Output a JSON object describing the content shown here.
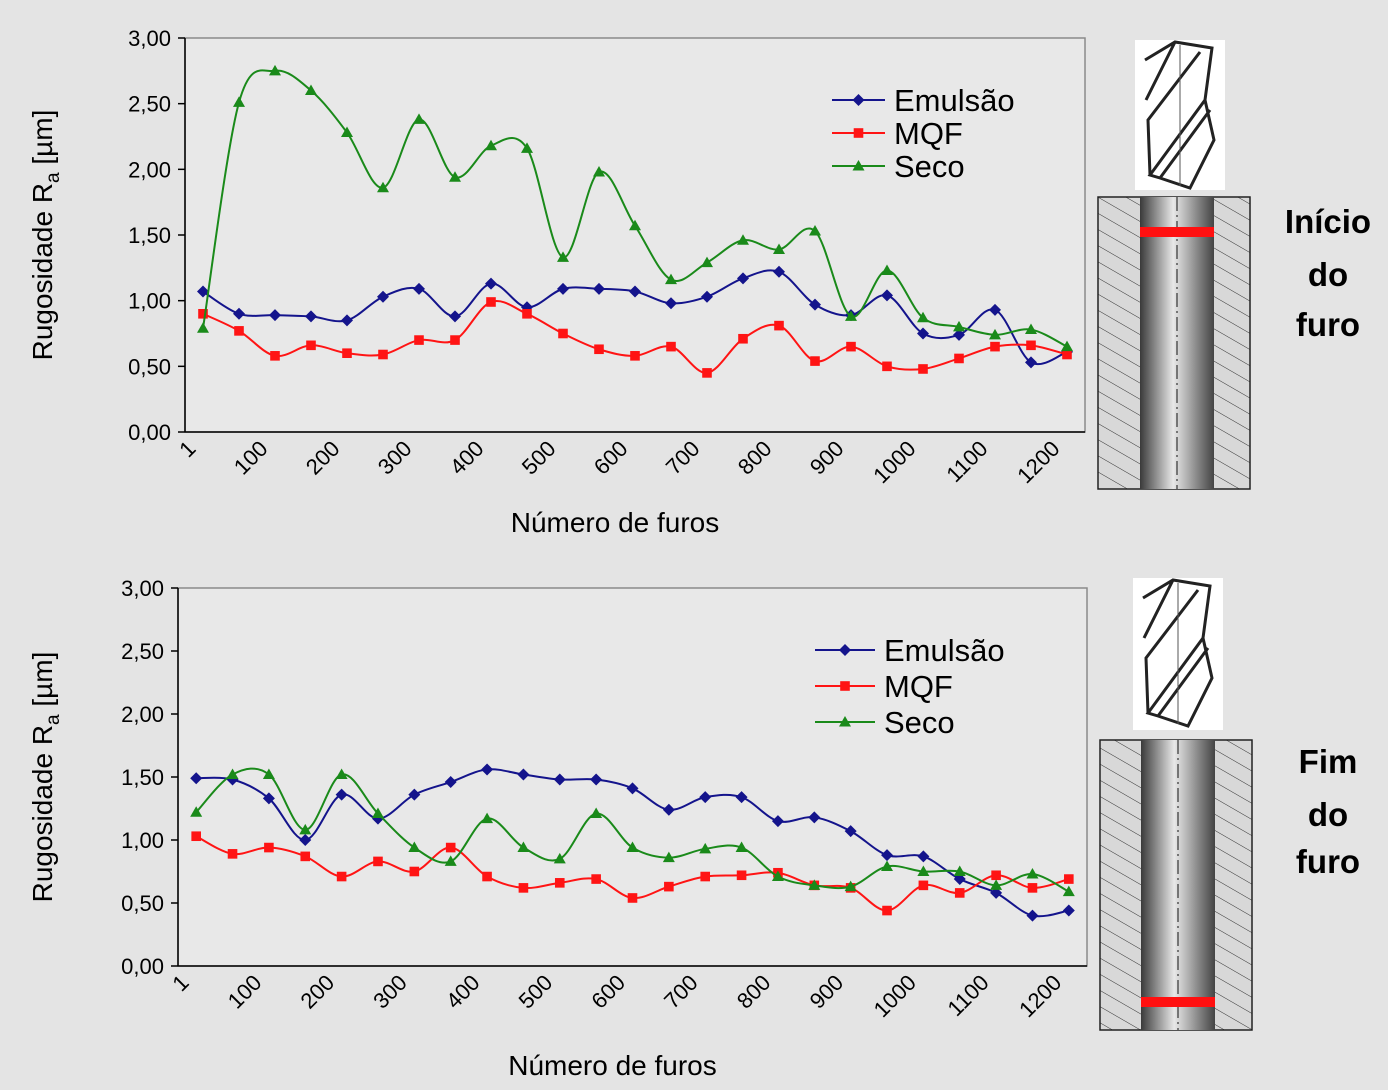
{
  "chart_data": [
    {
      "type": "line",
      "ylabel": {
        "text": "Rugosidade R",
        "subscript": "a",
        "suffix": " [µm]"
      },
      "xlabel": "Número de furos",
      "categories": [
        "1",
        null,
        "100",
        null,
        "200",
        null,
        "300",
        null,
        "400",
        null,
        "500",
        null,
        "600",
        null,
        "700",
        null,
        "800",
        null,
        "900",
        null,
        "1000",
        null,
        "1100",
        null,
        "1200"
      ],
      "series": [
        {
          "name": "Emulsão",
          "color": "#14148c",
          "marker": "diamond",
          "values": [
            1.07,
            0.9,
            0.89,
            0.88,
            0.85,
            1.03,
            1.09,
            0.88,
            1.13,
            0.95,
            1.09,
            1.09,
            1.07,
            0.98,
            1.03,
            1.17,
            1.22,
            0.97,
            0.89,
            1.04,
            0.75,
            0.74,
            0.93,
            0.53,
            0.61
          ]
        },
        {
          "name": "MQF",
          "color": "#ff1414",
          "marker": "square",
          "values": [
            0.9,
            0.77,
            0.58,
            0.66,
            0.6,
            0.59,
            0.7,
            0.7,
            0.99,
            0.9,
            0.75,
            0.63,
            0.58,
            0.65,
            0.45,
            0.71,
            0.81,
            0.54,
            0.65,
            0.5,
            0.48,
            0.56,
            0.65,
            0.66,
            0.59
          ]
        },
        {
          "name": "Seco",
          "color": "#1a8a1a",
          "marker": "triangle",
          "values": [
            0.79,
            2.51,
            2.75,
            2.6,
            2.28,
            1.86,
            2.38,
            1.94,
            2.18,
            2.16,
            1.33,
            1.98,
            1.57,
            1.16,
            1.29,
            1.46,
            1.39,
            1.53,
            0.88,
            1.23,
            0.87,
            0.8,
            0.74,
            0.78,
            0.65
          ]
        }
      ],
      "ylim": [
        0,
        3
      ],
      "yticks": [
        {
          "value": 0,
          "label": "0,00"
        },
        {
          "value": 0.5,
          "label": "0,50"
        },
        {
          "value": 1,
          "label": "1,00"
        },
        {
          "value": 1.5,
          "label": "1,50"
        },
        {
          "value": 2,
          "label": "2,00"
        },
        {
          "value": 2.5,
          "label": "2,50"
        },
        {
          "value": 3,
          "label": "3,00"
        }
      ],
      "legend": "upper right"
    },
    {
      "type": "line",
      "ylabel": {
        "text": "Rugosidade R",
        "subscript": "a",
        "suffix": " [µm]"
      },
      "xlabel": "Número de furos",
      "categories": [
        "1",
        null,
        "100",
        null,
        "200",
        null,
        "300",
        null,
        "400",
        null,
        "500",
        null,
        "600",
        null,
        "700",
        null,
        "800",
        null,
        "900",
        null,
        "1000",
        null,
        "1100",
        null,
        "1200"
      ],
      "series": [
        {
          "name": "Emulsão",
          "color": "#14148c",
          "marker": "diamond",
          "values": [
            1.49,
            1.48,
            1.33,
            1.0,
            1.36,
            1.17,
            1.36,
            1.46,
            1.56,
            1.52,
            1.48,
            1.48,
            1.41,
            1.24,
            1.34,
            1.34,
            1.15,
            1.18,
            1.07,
            0.88,
            0.87,
            0.69,
            0.58,
            0.4,
            0.44
          ]
        },
        {
          "name": "MQF",
          "color": "#ff1414",
          "marker": "square",
          "values": [
            1.03,
            0.89,
            0.94,
            0.87,
            0.71,
            0.83,
            0.75,
            0.94,
            0.71,
            0.62,
            0.66,
            0.69,
            0.54,
            0.63,
            0.71,
            0.72,
            0.74,
            0.64,
            0.62,
            0.44,
            0.64,
            0.58,
            0.72,
            0.62,
            0.69
          ]
        },
        {
          "name": "Seco",
          "color": "#1a8a1a",
          "marker": "triangle",
          "values": [
            1.22,
            1.52,
            1.52,
            1.08,
            1.52,
            1.21,
            0.94,
            0.83,
            1.17,
            0.94,
            0.85,
            1.21,
            0.94,
            0.86,
            0.93,
            0.94,
            0.71,
            0.64,
            0.63,
            0.79,
            0.75,
            0.75,
            0.64,
            0.73,
            0.59
          ]
        }
      ],
      "ylim": [
        0,
        3
      ],
      "yticks": [
        {
          "value": 0,
          "label": "0,00"
        },
        {
          "value": 0.5,
          "label": "0,50"
        },
        {
          "value": 1,
          "label": "1,00"
        },
        {
          "value": 1.5,
          "label": "1,50"
        },
        {
          "value": 2,
          "label": "2,00"
        },
        {
          "value": 2.5,
          "label": "2,50"
        },
        {
          "value": 3,
          "label": "3,00"
        }
      ],
      "legend": "upper right"
    }
  ],
  "side_labels": [
    [
      "Início",
      "do",
      "furo"
    ],
    [
      "Fim",
      "do",
      "furo"
    ]
  ]
}
